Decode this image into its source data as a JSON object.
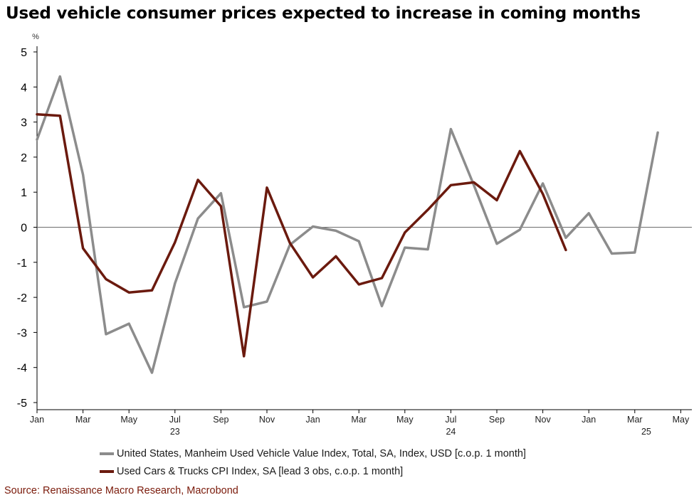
{
  "title": "Used vehicle consumer prices expected to increase in coming months",
  "source": "Source: Renaissance Macro Research, Macrobond",
  "chart_data": {
    "type": "line",
    "unit_label": "%",
    "ylim": [
      -5,
      5
    ],
    "y_ticks": [
      "5",
      "4",
      "3",
      "2",
      "1",
      "0",
      "-1",
      "-2",
      "-3",
      "-4",
      "-5"
    ],
    "x_tick_labels": [
      "Jan",
      "Mar",
      "May",
      "Jul",
      "Sep",
      "Nov",
      "Jan",
      "Mar",
      "May",
      "Jul",
      "Sep",
      "Nov",
      "Jan",
      "Mar",
      "May"
    ],
    "year_labels": [
      "23",
      "24",
      "25"
    ],
    "grid": false,
    "legend_position": "bottom",
    "x": [
      "2023-01",
      "2023-02",
      "2023-03",
      "2023-04",
      "2023-05",
      "2023-06",
      "2023-07",
      "2023-08",
      "2023-09",
      "2023-10",
      "2023-11",
      "2023-12",
      "2024-01",
      "2024-02",
      "2024-03",
      "2024-04",
      "2024-05",
      "2024-06",
      "2024-07",
      "2024-08",
      "2024-09",
      "2024-10",
      "2024-11",
      "2024-12",
      "2025-01",
      "2025-02",
      "2025-03",
      "2025-04"
    ],
    "series": [
      {
        "name": "United States, Manheim Used Vehicle Value Index, Total, SA, Index, USD [c.o.p. 1 month]",
        "color": "#8c8c8c",
        "values": [
          2.5,
          4.3,
          1.5,
          -3.05,
          -2.75,
          -4.15,
          -1.6,
          0.25,
          0.97,
          -2.28,
          -2.12,
          -0.5,
          0.02,
          -0.1,
          -0.4,
          -2.25,
          -0.58,
          -0.63,
          2.8,
          1.2,
          -0.47,
          -0.07,
          1.25,
          -0.3,
          0.4,
          -0.75,
          -0.72,
          2.7
        ]
      },
      {
        "name": "Used Cars & Trucks CPI Index, SA [lead 3 obs, c.o.p. 1 month]",
        "color": "#6b1a0e",
        "values": [
          3.22,
          3.18,
          -0.6,
          -1.48,
          -1.86,
          -1.8,
          -0.43,
          1.35,
          0.6,
          -3.68,
          1.13,
          -0.45,
          -1.43,
          -0.83,
          -1.63,
          -1.45,
          -0.15,
          0.5,
          1.2,
          1.28,
          0.77,
          2.17,
          0.95,
          -0.65,
          null,
          null,
          null,
          null
        ]
      }
    ]
  }
}
